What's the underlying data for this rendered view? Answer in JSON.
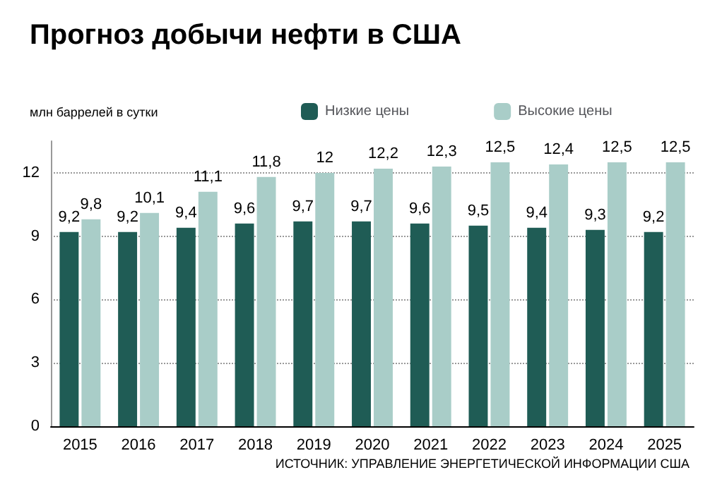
{
  "chart_data": {
    "type": "bar",
    "title": "Прогноз добычи нефти в США",
    "ylabel": "млн баррелей в сутки",
    "categories": [
      "2015",
      "2016",
      "2017",
      "2018",
      "2019",
      "2020",
      "2021",
      "2022",
      "2023",
      "2024",
      "2025"
    ],
    "series": [
      {
        "name": "Низкие цены",
        "color": "#1f5c55",
        "values": [
          9.2,
          9.2,
          9.4,
          9.6,
          9.7,
          9.7,
          9.6,
          9.5,
          9.4,
          9.3,
          9.2
        ],
        "value_labels": [
          "9,2",
          "9,2",
          "9,4",
          "9,6",
          "9,7",
          "9,7",
          "9,6",
          "9,5",
          "9,4",
          "9,3",
          "9,2"
        ]
      },
      {
        "name": "Высокие цены",
        "color": "#a9cdc8",
        "values": [
          9.8,
          10.1,
          11.1,
          11.8,
          12,
          12.2,
          12.3,
          12.5,
          12.4,
          12.5,
          12.5
        ],
        "value_labels": [
          "9,8",
          "10,1",
          "11,1",
          "11,8",
          "12",
          "12,2",
          "12,3",
          "12,5",
          "12,4",
          "12,5",
          "12,5"
        ]
      }
    ],
    "ylim": [
      0,
      13.5
    ],
    "yticks": [
      0,
      3,
      6,
      9,
      12
    ],
    "grid": "y",
    "legend": "top",
    "annotations": [
      "ИСТОЧНИК: УПРАВЛЕНИЕ ЭНЕРГЕТИЧЕСКОЙ ИНФОРМАЦИИ США"
    ]
  }
}
